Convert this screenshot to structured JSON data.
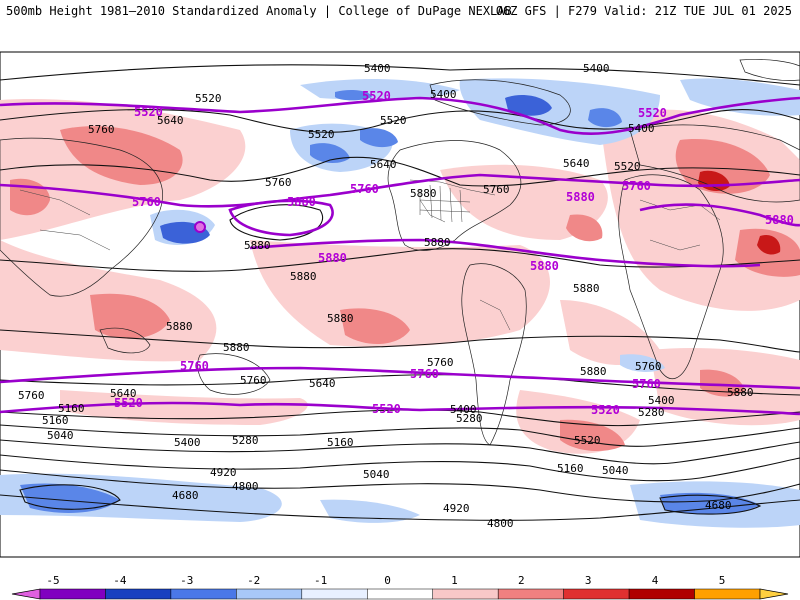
{
  "header": {
    "title_left": "500mb Height 1981–2010 Standardized Anomaly | College of DuPage NEXLAB",
    "title_right": "06Z GFS | F279 Valid: 21Z TUE JUL 01 2025"
  },
  "legend": {
    "ticks": [
      "-5",
      "-4",
      "-3",
      "-2",
      "-1",
      "0",
      "1",
      "2",
      "3",
      "4",
      "5"
    ],
    "colors": [
      "#e060e0",
      "#8000c0",
      "#1840c0",
      "#4a78e8",
      "#a8c8f8",
      "#e8f0ff",
      "#ffffff",
      "#f8c8c8",
      "#f08080",
      "#e03030",
      "#b00000",
      "#ffa000",
      "#ffd040"
    ]
  },
  "contour_labels": {
    "black": [
      "5400",
      "5400",
      "5520",
      "5640",
      "5400",
      "5520",
      "5400",
      "5760",
      "5520",
      "5640",
      "5640",
      "5520",
      "5760",
      "5760",
      "5880",
      "5880",
      "5880",
      "5880",
      "5880",
      "5880",
      "5880",
      "5880",
      "5880",
      "5760",
      "5640",
      "5760",
      "5760",
      "5760",
      "5880",
      "5640",
      "5400",
      "5280",
      "5400",
      "5280",
      "5160",
      "5040",
      "5400",
      "5280",
      "5160",
      "5160",
      "5040",
      "5040",
      "4920",
      "4800",
      "4920",
      "4800",
      "4680",
      "4680",
      "5520",
      "5160"
    ],
    "purple": [
      "5520",
      "5520",
      "5520",
      "5760",
      "5760",
      "5760",
      "5880",
      "5880",
      "5880",
      "5880",
      "5880",
      "5760",
      "5760",
      "5760",
      "5520",
      "5520",
      "5520"
    ]
  },
  "map_elements": [
    "world-continents",
    "country-borders",
    "us-state-borders"
  ]
}
